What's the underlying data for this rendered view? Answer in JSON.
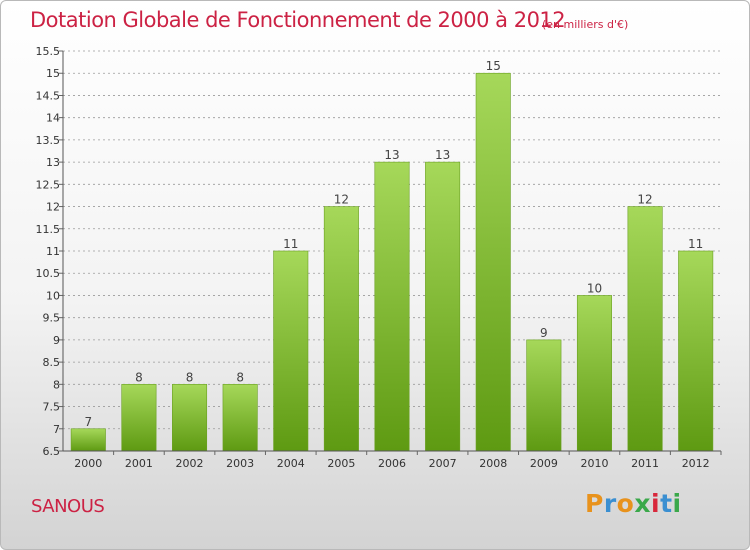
{
  "header": {
    "title": "Dotation Globale de Fonctionnement de 2000 à 2012",
    "unit": "(en milliers d'€)"
  },
  "footer": {
    "commune": "SANOUS",
    "logo": "Proxiti",
    "logo_letter_colors": [
      "#e8921c",
      "#3a8fd1",
      "#e8921c",
      "#3aa84a",
      "#d8283c",
      "#3a8fd1",
      "#3aa84a"
    ]
  },
  "colors": {
    "title": "#cc2244",
    "bar_top": "#a6d85a",
    "bar_bottom": "#5e9a12",
    "grid": "#9a9a9a"
  },
  "chart_data": {
    "type": "bar",
    "title": "Dotation Globale de Fonctionnement de 2000 à 2012",
    "xlabel": "",
    "ylabel": "",
    "categories": [
      "2000",
      "2001",
      "2002",
      "2003",
      "2004",
      "2005",
      "2006",
      "2007",
      "2008",
      "2009",
      "2010",
      "2011",
      "2012"
    ],
    "values": [
      7,
      8,
      8,
      8,
      11,
      12,
      13,
      13,
      15,
      9,
      10,
      12,
      11
    ],
    "data_labels": [
      "7",
      "8",
      "8",
      "8",
      "11",
      "12",
      "13",
      "13",
      "15",
      "9",
      "10",
      "12",
      "11"
    ],
    "ylim": [
      6.5,
      15.5
    ],
    "yticks": [
      6.5,
      7,
      7.5,
      8,
      8.5,
      9,
      9.5,
      10,
      10.5,
      11,
      11.5,
      12,
      12.5,
      13,
      13.5,
      14,
      14.5,
      15,
      15.5
    ],
    "ytick_labels": [
      "6.5",
      "7",
      "7.5",
      "8",
      "8.5",
      "9",
      "9.5",
      "10",
      "10.5",
      "11",
      "11.5",
      "12",
      "12.5",
      "13",
      "13.5",
      "14",
      "14.5",
      "15",
      "15.5"
    ],
    "grid": true,
    "legend": "none"
  }
}
